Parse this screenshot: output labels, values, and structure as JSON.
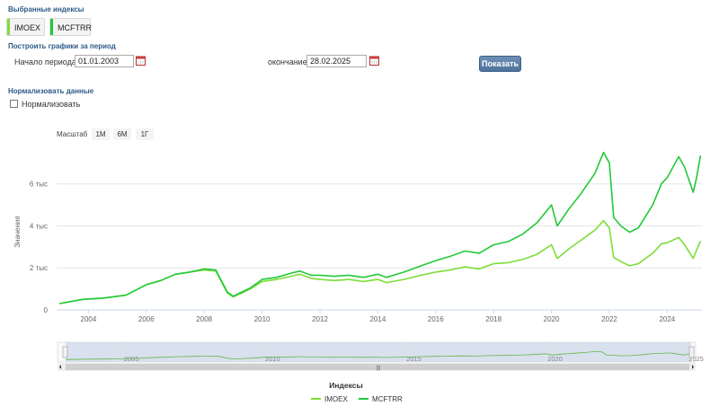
{
  "selected_indices": {
    "title": "Выбранные индексы",
    "tags": [
      {
        "label": "IMOEX",
        "color": "#7cdd38"
      },
      {
        "label": "MCFTRR",
        "color": "#22c93a"
      }
    ]
  },
  "period": {
    "title": "Построить графики за период",
    "start_label": "Начало периода",
    "start_value": "01.01.2003",
    "end_label": "окончание",
    "end_value": "28.02.2025",
    "show_button": "Показать"
  },
  "normalize": {
    "title": "Нормализовать данные",
    "checkbox_label": "Нормализовать",
    "checked": false
  },
  "zoom": {
    "label": "Масштаб",
    "buttons": [
      "1М",
      "6М",
      "1Г"
    ]
  },
  "chart_data": {
    "type": "line",
    "ylabel": "Значения",
    "ylim": [
      0,
      7700
    ],
    "xlim": [
      2002.9,
      2025.2
    ],
    "yticks": [
      0,
      2000,
      4000,
      6000
    ],
    "ytick_labels": [
      "0",
      "2 тыс",
      "4 тыс",
      "6 тыс"
    ],
    "xticks": [
      2004,
      2006,
      2008,
      2010,
      2012,
      2014,
      2016,
      2018,
      2020,
      2022,
      2024
    ],
    "xtick_labels": [
      "2004",
      "2006",
      "2008",
      "2010",
      "2012",
      "2014",
      "2016",
      "2018",
      "2020",
      "2022",
      "2024"
    ],
    "grid": true,
    "series": [
      {
        "name": "IMOEX",
        "color": "#7cdd38",
        "points": [
          [
            2003.0,
            300
          ],
          [
            2003.8,
            500
          ],
          [
            2004.5,
            560
          ],
          [
            2005.3,
            700
          ],
          [
            2006.0,
            1200
          ],
          [
            2006.5,
            1400
          ],
          [
            2007.0,
            1700
          ],
          [
            2007.5,
            1800
          ],
          [
            2008.0,
            1900
          ],
          [
            2008.4,
            1850
          ],
          [
            2008.8,
            800
          ],
          [
            2009.0,
            620
          ],
          [
            2009.3,
            800
          ],
          [
            2009.6,
            1000
          ],
          [
            2010.0,
            1350
          ],
          [
            2010.5,
            1450
          ],
          [
            2011.0,
            1600
          ],
          [
            2011.3,
            1700
          ],
          [
            2011.7,
            1500
          ],
          [
            2012.0,
            1450
          ],
          [
            2012.5,
            1400
          ],
          [
            2013.0,
            1450
          ],
          [
            2013.5,
            1350
          ],
          [
            2014.0,
            1450
          ],
          [
            2014.3,
            1300
          ],
          [
            2014.9,
            1450
          ],
          [
            2015.5,
            1650
          ],
          [
            2016.0,
            1800
          ],
          [
            2016.5,
            1900
          ],
          [
            2017.0,
            2050
          ],
          [
            2017.5,
            1950
          ],
          [
            2018.0,
            2200
          ],
          [
            2018.5,
            2250
          ],
          [
            2019.0,
            2400
          ],
          [
            2019.5,
            2650
          ],
          [
            2020.0,
            3100
          ],
          [
            2020.2,
            2450
          ],
          [
            2020.6,
            2900
          ],
          [
            2021.0,
            3300
          ],
          [
            2021.5,
            3800
          ],
          [
            2021.8,
            4250
          ],
          [
            2022.0,
            3900
          ],
          [
            2022.15,
            2500
          ],
          [
            2022.4,
            2300
          ],
          [
            2022.7,
            2100
          ],
          [
            2023.0,
            2200
          ],
          [
            2023.5,
            2700
          ],
          [
            2023.8,
            3150
          ],
          [
            2024.0,
            3200
          ],
          [
            2024.4,
            3450
          ],
          [
            2024.6,
            3100
          ],
          [
            2024.9,
            2450
          ],
          [
            2025.0,
            2800
          ],
          [
            2025.15,
            3280
          ]
        ]
      },
      {
        "name": "MCFTRR",
        "color": "#22c93a",
        "points": [
          [
            2003.0,
            300
          ],
          [
            2003.8,
            500
          ],
          [
            2004.5,
            560
          ],
          [
            2005.3,
            700
          ],
          [
            2006.0,
            1200
          ],
          [
            2006.5,
            1400
          ],
          [
            2007.0,
            1700
          ],
          [
            2007.5,
            1800
          ],
          [
            2008.0,
            1950
          ],
          [
            2008.4,
            1900
          ],
          [
            2008.8,
            850
          ],
          [
            2009.0,
            650
          ],
          [
            2009.3,
            850
          ],
          [
            2009.6,
            1050
          ],
          [
            2010.0,
            1450
          ],
          [
            2010.5,
            1550
          ],
          [
            2011.0,
            1750
          ],
          [
            2011.3,
            1850
          ],
          [
            2011.7,
            1650
          ],
          [
            2012.0,
            1650
          ],
          [
            2012.5,
            1600
          ],
          [
            2013.0,
            1650
          ],
          [
            2013.5,
            1550
          ],
          [
            2014.0,
            1700
          ],
          [
            2014.3,
            1550
          ],
          [
            2014.9,
            1800
          ],
          [
            2015.5,
            2100
          ],
          [
            2016.0,
            2350
          ],
          [
            2016.5,
            2550
          ],
          [
            2017.0,
            2800
          ],
          [
            2017.5,
            2700
          ],
          [
            2018.0,
            3100
          ],
          [
            2018.5,
            3250
          ],
          [
            2019.0,
            3600
          ],
          [
            2019.5,
            4150
          ],
          [
            2020.0,
            5000
          ],
          [
            2020.2,
            4000
          ],
          [
            2020.6,
            4800
          ],
          [
            2021.0,
            5500
          ],
          [
            2021.5,
            6500
          ],
          [
            2021.8,
            7500
          ],
          [
            2022.0,
            7000
          ],
          [
            2022.15,
            4400
          ],
          [
            2022.4,
            4000
          ],
          [
            2022.7,
            3700
          ],
          [
            2023.0,
            3900
          ],
          [
            2023.5,
            5000
          ],
          [
            2023.8,
            6000
          ],
          [
            2024.0,
            6300
          ],
          [
            2024.4,
            7300
          ],
          [
            2024.6,
            6800
          ],
          [
            2024.9,
            5600
          ],
          [
            2025.0,
            6200
          ],
          [
            2025.15,
            7350
          ]
        ]
      }
    ],
    "navigator": {
      "xtick_labels": [
        "2005",
        "2010",
        "2015",
        "2020",
        "2025"
      ],
      "xticks": [
        2005,
        2010,
        2015,
        2020,
        2025
      ]
    },
    "legend": {
      "title": "Индексы",
      "position": "bottom-center"
    }
  }
}
